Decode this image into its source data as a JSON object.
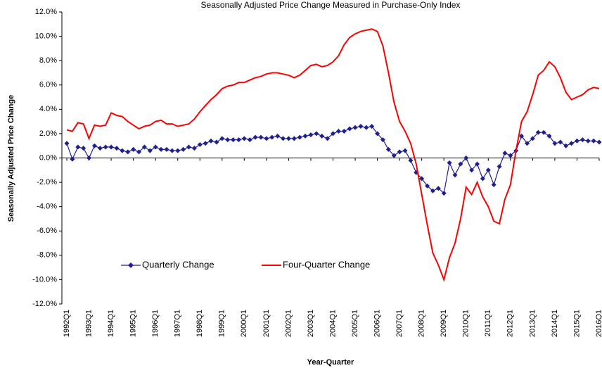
{
  "chart_data": {
    "type": "line",
    "title": "Seasonally Adjusted Price Change Measured in Purchase-Only Index",
    "x_label": "Year-Quarter",
    "y_label": "Seasonally Adjusted Price Change",
    "categories": [
      "1992Q1",
      null,
      null,
      null,
      "1993Q1",
      null,
      null,
      null,
      "1994Q1",
      null,
      null,
      null,
      "1995Q1",
      null,
      null,
      null,
      "1996Q1",
      null,
      null,
      null,
      "1997Q1",
      null,
      null,
      null,
      "1998Q1",
      null,
      null,
      null,
      "1999Q1",
      null,
      null,
      null,
      "2000Q1",
      null,
      null,
      null,
      "2001Q1",
      null,
      null,
      null,
      "2002Q1",
      null,
      null,
      null,
      "2003Q1",
      null,
      null,
      null,
      "2004Q1",
      null,
      null,
      null,
      "2005Q1",
      null,
      null,
      null,
      "2006Q1",
      null,
      null,
      null,
      "2007Q1",
      null,
      null,
      null,
      "2008Q1",
      null,
      null,
      null,
      "2009Q1",
      null,
      null,
      null,
      "2010Q1",
      null,
      null,
      null,
      "2011Q1",
      null,
      null,
      null,
      "2012Q1",
      null,
      null,
      null,
      "2013Q1",
      null,
      null,
      null,
      "2014Q1",
      null,
      null,
      null,
      "2015Q1",
      null,
      null,
      null,
      "2016Q1"
    ],
    "series": [
      {
        "name": "Quarterly Change",
        "color": "#1f1f8f",
        "marker": "diamond",
        "values": [
          1.2,
          -0.1,
          0.9,
          0.8,
          0.0,
          1.0,
          0.8,
          0.9,
          0.9,
          0.8,
          0.6,
          0.5,
          0.7,
          0.5,
          0.9,
          0.6,
          0.9,
          0.7,
          0.7,
          0.6,
          0.6,
          0.7,
          0.9,
          0.8,
          1.1,
          1.2,
          1.4,
          1.3,
          1.6,
          1.5,
          1.5,
          1.5,
          1.6,
          1.5,
          1.7,
          1.7,
          1.6,
          1.7,
          1.8,
          1.6,
          1.6,
          1.6,
          1.7,
          1.8,
          1.9,
          2.0,
          1.8,
          1.6,
          2.0,
          2.2,
          2.2,
          2.4,
          2.5,
          2.6,
          2.5,
          2.6,
          2.0,
          1.5,
          0.7,
          0.2,
          0.5,
          0.6,
          -0.2,
          -1.2,
          -1.7,
          -2.3,
          -2.7,
          -2.5,
          -2.9,
          -0.4,
          -1.4,
          -0.5,
          0.0,
          -1.0,
          -0.5,
          -1.7,
          -1.0,
          -2.2,
          -0.7,
          0.4,
          0.2,
          0.6,
          1.8,
          1.2,
          1.6,
          2.1,
          2.1,
          1.8,
          1.2,
          1.3,
          1.0,
          1.2,
          1.4,
          1.5,
          1.4,
          1.4,
          1.3
        ]
      },
      {
        "name": "Four-Quarter Change",
        "color": "#ff0000",
        "values": [
          2.3,
          2.2,
          2.9,
          2.8,
          1.6,
          2.7,
          2.6,
          2.7,
          3.7,
          3.5,
          3.4,
          3.0,
          2.7,
          2.4,
          2.6,
          2.7,
          3.0,
          3.1,
          2.8,
          2.8,
          2.6,
          2.7,
          2.8,
          3.2,
          3.8,
          4.3,
          4.8,
          5.2,
          5.7,
          5.9,
          6.0,
          6.2,
          6.2,
          6.4,
          6.6,
          6.7,
          6.9,
          7.0,
          7.0,
          6.9,
          6.8,
          6.6,
          6.8,
          7.2,
          7.6,
          7.7,
          7.5,
          7.6,
          7.9,
          8.4,
          9.3,
          9.9,
          10.2,
          10.4,
          10.5,
          10.6,
          10.4,
          9.2,
          7.0,
          4.6,
          3.0,
          2.2,
          1.2,
          -0.5,
          -3.0,
          -5.5,
          -7.8,
          -8.8,
          -10.0,
          -8.2,
          -7.0,
          -5.0,
          -2.4,
          -3.0,
          -2.0,
          -3.2,
          -4.0,
          -5.2,
          -5.4,
          -3.4,
          -2.2,
          0.6,
          3.0,
          3.8,
          5.2,
          6.8,
          7.2,
          7.9,
          7.5,
          6.6,
          5.4,
          4.8,
          5.0,
          5.2,
          5.6,
          5.8,
          5.7
        ]
      }
    ],
    "ylim": [
      -12,
      12
    ],
    "yticks": [
      {
        "value": -12,
        "label": "-12.0%"
      },
      {
        "value": -10,
        "label": "-10.0%"
      },
      {
        "value": -8,
        "label": "-8.0%"
      },
      {
        "value": -6,
        "label": "-6.0%"
      },
      {
        "value": -4,
        "label": "-4.0%"
      },
      {
        "value": -2,
        "label": "-2.0%"
      },
      {
        "value": 0,
        "label": "0.0%"
      },
      {
        "value": 2,
        "label": "2.0%"
      },
      {
        "value": 4,
        "label": "4.0%"
      },
      {
        "value": 6,
        "label": "6.0%"
      },
      {
        "value": 8,
        "label": "8.0%"
      },
      {
        "value": 10,
        "label": "10.0%"
      },
      {
        "value": 12,
        "label": "12.0%"
      }
    ],
    "grid": false,
    "legend": "lower left"
  }
}
